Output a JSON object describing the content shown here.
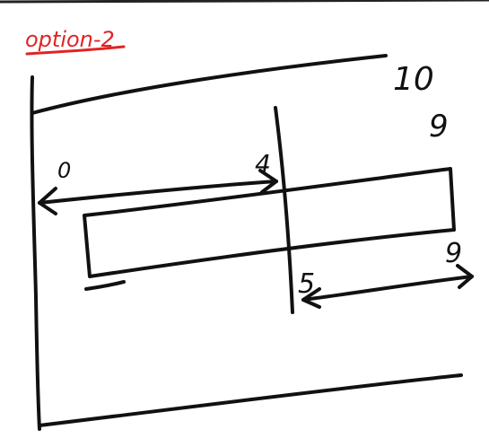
{
  "title": {
    "text": "option-2",
    "color": "#e02424"
  },
  "labels": {
    "ten": "10",
    "nine_top": "9",
    "zero": "0",
    "four": "4",
    "five": "5",
    "nine_right": "9"
  },
  "colors": {
    "ink": "#111111",
    "background": "#ffffff"
  }
}
